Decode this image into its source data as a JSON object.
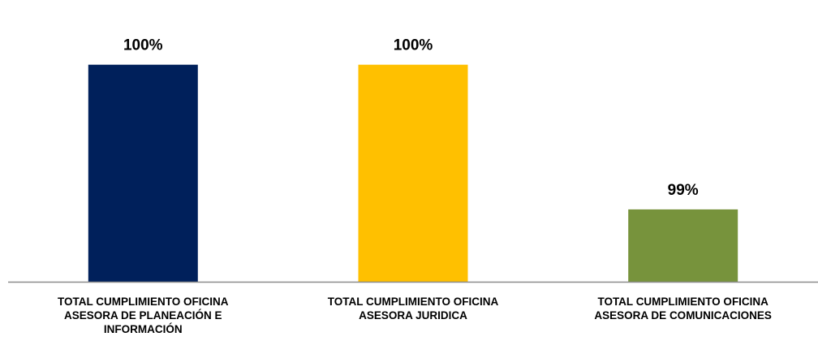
{
  "chart_data": {
    "type": "bar",
    "categories": [
      [
        "TOTAL CUMPLIMIENTO OFICINA",
        "ASESORA DE PLANEACIÓN E",
        "INFORMACIÓN"
      ],
      [
        "TOTAL CUMPLIMIENTO OFICINA",
        "ASESORA JURIDICA"
      ],
      [
        "TOTAL CUMPLIMIENTO OFICINA",
        "ASESORA DE COMUNICACIONES"
      ]
    ],
    "values": [
      100,
      100,
      99
    ],
    "data_labels": [
      "100%",
      "100%",
      "99%"
    ],
    "colors": [
      "#00205B",
      "#FFC000",
      "#77933C"
    ],
    "axis_color": "#8C8C8C",
    "ylim": [
      98.5,
      100.15
    ],
    "grid": false,
    "legend": "none",
    "title": "",
    "xlabel": "",
    "ylabel": ""
  }
}
